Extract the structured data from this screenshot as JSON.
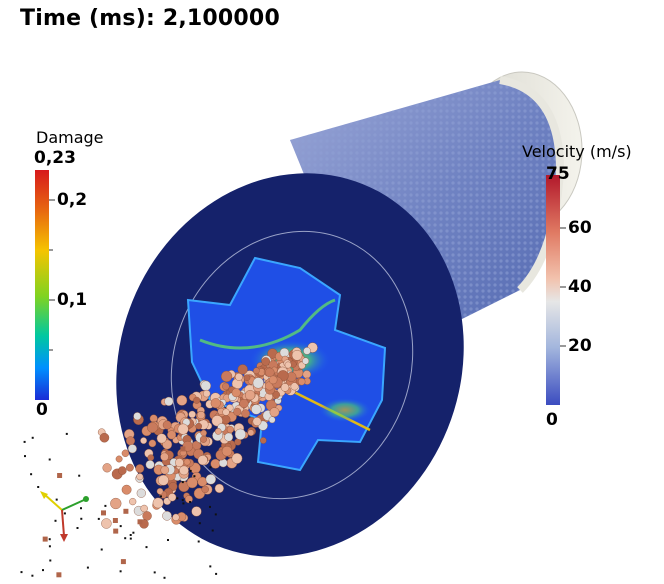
{
  "title": "Time (ms): 2,100000",
  "damage_bar": {
    "title": "Damage",
    "labels": [
      "0,23",
      "0,2",
      "0,1",
      "0"
    ],
    "colors": [
      "#d7191c",
      "#e86a10",
      "#f5c400",
      "#7fd321",
      "#00c8a0",
      "#0090ff",
      "#1a2bd6"
    ]
  },
  "velocity_bar": {
    "title": "Velocity (m/s)",
    "labels": [
      "75",
      "60",
      "40",
      "20",
      "0"
    ],
    "colors": [
      "#b2182b",
      "#e07a63",
      "#f2c2ad",
      "#e6e6e6",
      "#a3b6dd",
      "#5d79c4",
      "#3b4cc0"
    ]
  },
  "scene": {
    "cylinder_color": "#7f8fc4",
    "plate_color": "#15226b",
    "particle_color": "#d98c6a"
  }
}
